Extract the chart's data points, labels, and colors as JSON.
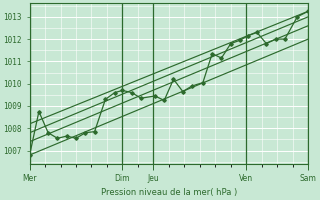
{
  "background_color": "#c8e8d4",
  "line_color": "#2d6a2d",
  "ylim": [
    1006.4,
    1013.6
  ],
  "yticks": [
    1007,
    1008,
    1009,
    1010,
    1011,
    1012,
    1013
  ],
  "xlabel": "Pression niveau de la mer( hPa )",
  "major_x": [
    0,
    3,
    4,
    7,
    9
  ],
  "major_labels": [
    "Mer",
    "Dim",
    "Jeu",
    "Ven",
    "Sam"
  ],
  "series_x": [
    0,
    0.3,
    0.6,
    0.9,
    1.2,
    1.5,
    1.8,
    2.1,
    2.45,
    2.75,
    3.0,
    3.3,
    3.6,
    4.05,
    4.35,
    4.65,
    4.95,
    5.25,
    5.6,
    5.9,
    6.2,
    6.5,
    6.8,
    7.05,
    7.35,
    7.65,
    7.95,
    8.25,
    8.65,
    9.0
  ],
  "series_y": [
    1006.8,
    1008.75,
    1007.8,
    1007.55,
    1007.65,
    1007.55,
    1007.8,
    1007.85,
    1009.3,
    1009.6,
    1009.7,
    1009.6,
    1009.35,
    1009.45,
    1009.25,
    1010.2,
    1009.65,
    1009.9,
    1010.05,
    1011.35,
    1011.15,
    1011.8,
    1011.95,
    1012.15,
    1012.3,
    1011.8,
    1012.0,
    1012.0,
    1013.0,
    1013.25
  ],
  "trend_lines": [
    {
      "x": [
        0,
        9.0
      ],
      "y": [
        1006.8,
        1012.0
      ]
    },
    {
      "x": [
        0,
        9.0
      ],
      "y": [
        1007.4,
        1012.6
      ]
    },
    {
      "x": [
        0,
        9.0
      ],
      "y": [
        1007.8,
        1013.0
      ]
    },
    {
      "x": [
        0,
        9.0
      ],
      "y": [
        1008.2,
        1013.25
      ]
    }
  ]
}
